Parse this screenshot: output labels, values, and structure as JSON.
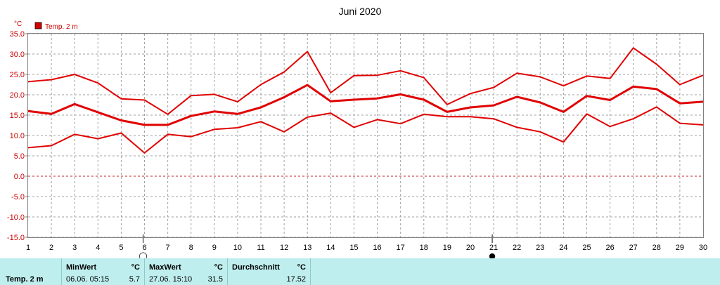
{
  "colors": {
    "series": "#e00000",
    "grid": "#a0a0a0",
    "zero_grid": "#c02020",
    "footer_bg": "#bfeeee"
  },
  "chart_data": {
    "type": "line",
    "title": "Juni 2020",
    "unit_label": "°C",
    "legend": {
      "label": "Temp. 2 m",
      "placement": "top-left"
    },
    "x": [
      1,
      2,
      3,
      4,
      5,
      6,
      7,
      8,
      9,
      10,
      11,
      12,
      13,
      14,
      15,
      16,
      17,
      18,
      19,
      20,
      21,
      22,
      23,
      24,
      25,
      26,
      27,
      28,
      29,
      30
    ],
    "xlim": [
      1,
      30
    ],
    "ylim": [
      -15,
      35
    ],
    "yticks": [
      "35.0",
      "30.0",
      "25.0",
      "20.0",
      "15.0",
      "10.0",
      "5.0",
      "0.0",
      "-5.0",
      "-10.0",
      "-15.0"
    ],
    "grid": true,
    "series": [
      {
        "name": "max",
        "values": [
          23.2,
          23.7,
          25.0,
          22.9,
          19.0,
          18.7,
          15.2,
          19.8,
          20.1,
          18.3,
          22.5,
          25.6,
          30.6,
          20.5,
          24.7,
          24.8,
          25.9,
          24.2,
          17.6,
          20.3,
          21.8,
          25.3,
          24.4,
          22.2,
          24.6,
          24.0,
          31.5,
          27.5,
          22.5,
          24.8
        ]
      },
      {
        "name": "mean",
        "values": [
          16.0,
          15.3,
          17.7,
          15.7,
          13.7,
          12.6,
          12.6,
          14.8,
          15.9,
          15.3,
          16.9,
          19.4,
          22.4,
          18.4,
          18.8,
          19.1,
          20.1,
          18.8,
          15.8,
          16.9,
          17.4,
          19.5,
          18.1,
          15.8,
          19.7,
          18.7,
          22.0,
          21.4,
          17.9,
          18.3
        ]
      },
      {
        "name": "min",
        "values": [
          7.0,
          7.5,
          10.3,
          9.2,
          10.6,
          5.7,
          10.3,
          9.7,
          11.5,
          11.9,
          13.4,
          10.9,
          14.5,
          15.5,
          12.0,
          13.9,
          12.9,
          15.2,
          14.6,
          14.6,
          14.1,
          12.0,
          10.9,
          8.4,
          15.3,
          12.2,
          14.1,
          17.0,
          13.0,
          12.6
        ]
      }
    ],
    "moon_phases": [
      {
        "day": 6,
        "symbol": "◯"
      },
      {
        "day": 21,
        "symbol": "●"
      }
    ]
  },
  "footer": {
    "name": "Temp. 2 m",
    "min_header": "MinWert",
    "min_unit": "°C",
    "min_datetime": "06.06.  05:15",
    "min_value": "5.7",
    "max_header": "MaxWert",
    "max_unit": "°C",
    "max_datetime": "27.06.  15:10",
    "max_value": "31.5",
    "avg_header": "Durchschnitt",
    "avg_unit": "°C",
    "avg_value": "17.52"
  }
}
